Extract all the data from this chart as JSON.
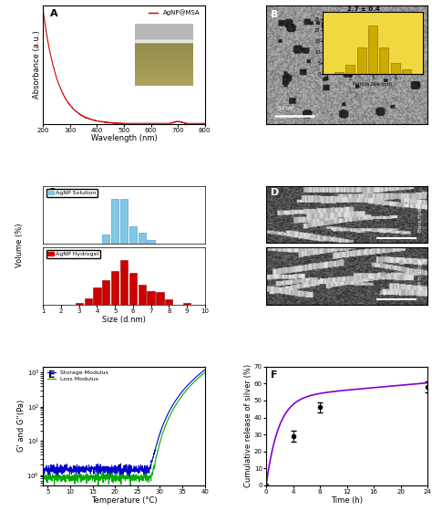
{
  "panel_A": {
    "label": "A",
    "xlabel": "Wavelength (nm)",
    "ylabel": "Absorbance (a.u.)",
    "legend": "AgNP@MSA",
    "line_color": "#cc0000",
    "xticks": [
      200,
      300,
      400,
      500,
      600,
      700,
      800
    ]
  },
  "panel_C": {
    "label": "C",
    "xlabel": "Size (d.nm)",
    "ylabel": "Volume (%)",
    "solution_label": "AgNP Solution",
    "hydrogel_label": "AgNP Hydrogel",
    "solution_color": "#7EC8E3",
    "hydrogel_color": "#cc0000",
    "solution_sizes": [
      4.5,
      5.0,
      5.5,
      6.0,
      6.5,
      7.0
    ],
    "solution_volumes": [
      20,
      100,
      100,
      38,
      25,
      8
    ],
    "hydrogel_sizes": [
      3.0,
      3.5,
      4.0,
      4.5,
      5.0,
      5.5,
      6.0,
      6.5,
      7.0,
      7.5,
      8.0,
      9.0
    ],
    "hydrogel_volumes": [
      3,
      15,
      38,
      55,
      75,
      100,
      72,
      45,
      30,
      28,
      12,
      5
    ],
    "xticks": [
      1,
      2,
      3,
      4,
      5,
      6,
      7,
      8,
      9,
      10
    ]
  },
  "panel_E": {
    "label": "E",
    "xlabel": "Temperature (°C)",
    "ylabel": "G' and G''(Pa)",
    "storage_label": "Storage Modulus",
    "loss_label": "Loss Modulus",
    "storage_color": "#0000cc",
    "loss_color": "#00aa00",
    "xticks": [
      5,
      10,
      15,
      20,
      25,
      30,
      35,
      40
    ]
  },
  "panel_F": {
    "label": "F",
    "xlabel": "Time (h)",
    "ylabel": "Cumulative release of silver (%)",
    "line_color": "#8800cc",
    "time_points": [
      0,
      4,
      8,
      24
    ],
    "release_values": [
      0,
      29,
      46,
      58
    ],
    "error_bars": [
      0,
      3,
      3,
      3
    ],
    "xticks": [
      0,
      4,
      8,
      12,
      16,
      20,
      24
    ],
    "yticks": [
      0,
      10,
      20,
      30,
      40,
      50,
      60,
      70
    ]
  },
  "background_color": "#ffffff"
}
